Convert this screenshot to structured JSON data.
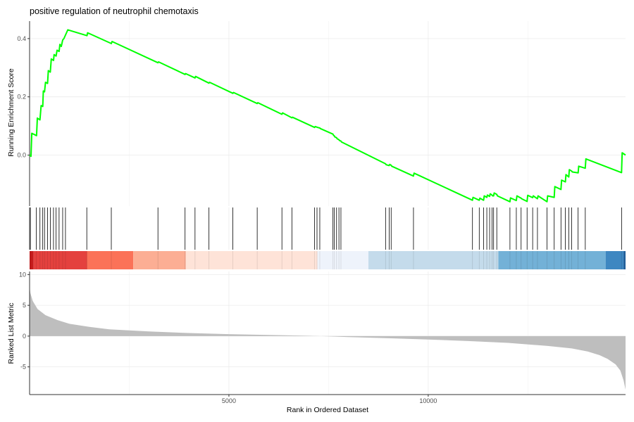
{
  "chart_data": {
    "type": "line",
    "title": "positive regulation of neutrophil chemotaxis",
    "xlabel": "Rank in Ordered Dataset",
    "xlim": [
      0,
      14950
    ],
    "xticks": [
      5000,
      10000
    ],
    "grid": true,
    "legend": "none",
    "enrichment": {
      "ylabel": "Running Enrichment Score",
      "ylim": [
        -0.175,
        0.46
      ],
      "yticks": [
        0.0,
        0.2,
        0.4
      ],
      "color": "#00ff00",
      "x": [
        0,
        35,
        55,
        175,
        195,
        260,
        290,
        330,
        345,
        375,
        400,
        450,
        470,
        520,
        545,
        600,
        615,
        665,
        690,
        740,
        760,
        795,
        830,
        860,
        960,
        1440,
        1455,
        2050,
        2070,
        3220,
        3235,
        3900,
        3915,
        4150,
        4165,
        4500,
        4515,
        5100,
        5115,
        5710,
        5725,
        6330,
        6345,
        6580,
        6595,
        7150,
        7165,
        7210,
        7225,
        7280,
        7295,
        7610,
        7625,
        7645,
        7660,
        7700,
        7715,
        7760,
        7775,
        7810,
        7825,
        8930,
        8945,
        9020,
        9035,
        9070,
        9085,
        9630,
        9645,
        11110,
        11125,
        11280,
        11295,
        11390,
        11405,
        11470,
        11485,
        11540,
        11555,
        11600,
        11615,
        11640,
        11655,
        11720,
        11735,
        12050,
        12065,
        12210,
        12225,
        12330,
        12345,
        12480,
        12495,
        12620,
        12635,
        12740,
        12755,
        12980,
        12995,
        13160,
        13175,
        13330,
        13345,
        13440,
        13455,
        13525,
        13540,
        13600,
        13615,
        13760,
        13775,
        13940,
        13955,
        14850,
        14865,
        14950
      ],
      "y": [
        0.0,
        -0.004,
        0.075,
        0.067,
        0.127,
        0.121,
        0.17,
        0.167,
        0.22,
        0.217,
        0.25,
        0.246,
        0.29,
        0.285,
        0.33,
        0.325,
        0.345,
        0.34,
        0.36,
        0.356,
        0.38,
        0.373,
        0.395,
        0.4,
        0.43,
        0.41,
        0.42,
        0.383,
        0.39,
        0.317,
        0.32,
        0.277,
        0.28,
        0.265,
        0.27,
        0.247,
        0.25,
        0.212,
        0.215,
        0.177,
        0.18,
        0.14,
        0.145,
        0.128,
        0.13,
        0.095,
        0.098,
        0.096,
        0.095,
        0.093,
        0.091,
        0.072,
        0.068,
        0.066,
        0.062,
        0.06,
        0.056,
        0.053,
        0.05,
        0.048,
        0.045,
        -0.03,
        -0.033,
        -0.036,
        -0.032,
        -0.035,
        -0.038,
        -0.072,
        -0.062,
        -0.155,
        -0.145,
        -0.155,
        -0.148,
        -0.155,
        -0.14,
        -0.145,
        -0.137,
        -0.142,
        -0.133,
        -0.137,
        -0.14,
        -0.14,
        -0.13,
        -0.135,
        -0.14,
        -0.16,
        -0.147,
        -0.156,
        -0.14,
        -0.148,
        -0.15,
        -0.159,
        -0.138,
        -0.146,
        -0.14,
        -0.15,
        -0.14,
        -0.16,
        -0.14,
        -0.145,
        -0.108,
        -0.118,
        -0.086,
        -0.092,
        -0.067,
        -0.075,
        -0.05,
        -0.055,
        -0.058,
        -0.061,
        -0.038,
        -0.045,
        -0.013,
        -0.06,
        0.008,
        0.0
      ]
    },
    "hits": [
      20,
      170,
      260,
      330,
      375,
      450,
      520,
      600,
      665,
      740,
      830,
      900,
      1435,
      2050,
      3220,
      3900,
      4150,
      4500,
      5100,
      5710,
      6330,
      6580,
      7150,
      7210,
      7280,
      7610,
      7645,
      7700,
      7760,
      7810,
      8930,
      9020,
      9070,
      9630,
      11110,
      11280,
      11390,
      11470,
      11540,
      11600,
      11640,
      11720,
      12050,
      12210,
      12330,
      12480,
      12620,
      12740,
      12980,
      13160,
      13330,
      13440,
      13525,
      13600,
      13760,
      13940,
      14850
    ],
    "color_bar": [
      {
        "from": 0,
        "to": 100,
        "color": "#c51c1c"
      },
      {
        "from": 100,
        "to": 1440,
        "color": "#e4413e"
      },
      {
        "from": 1440,
        "to": 2600,
        "color": "#fb7258"
      },
      {
        "from": 2600,
        "to": 3920,
        "color": "#fcae94"
      },
      {
        "from": 3920,
        "to": 7220,
        "color": "#fee3d8"
      },
      {
        "from": 7220,
        "to": 8500,
        "color": "#eef3fb"
      },
      {
        "from": 8500,
        "to": 11760,
        "color": "#c4dbeb"
      },
      {
        "from": 11760,
        "to": 14450,
        "color": "#73b1d7"
      },
      {
        "from": 14450,
        "to": 14900,
        "color": "#3e87c1"
      },
      {
        "from": 14900,
        "to": 14950,
        "color": "#1f5d99"
      }
    ],
    "ranked_metric": {
      "ylabel": "Ranked List Metric",
      "ylim": [
        -9.5,
        10.5
      ],
      "yticks": [
        10,
        5,
        0,
        -5
      ],
      "color": "#bebebe",
      "x": [
        0,
        20,
        80,
        200,
        400,
        700,
        1000,
        1500,
        2000,
        3000,
        4000,
        5000,
        6000,
        7000,
        7300,
        7500,
        8000,
        9000,
        10000,
        11000,
        12000,
        13000,
        13600,
        14000,
        14300,
        14500,
        14700,
        14820,
        14900,
        14950
      ],
      "y": [
        8.0,
        7.0,
        5.7,
        4.4,
        3.4,
        2.6,
        2.0,
        1.5,
        1.1,
        0.75,
        0.5,
        0.32,
        0.18,
        0.05,
        0.0,
        -0.05,
        -0.15,
        -0.35,
        -0.55,
        -0.8,
        -1.1,
        -1.6,
        -2.0,
        -2.5,
        -3.1,
        -3.7,
        -4.6,
        -5.6,
        -7.2,
        -8.7
      ]
    }
  }
}
